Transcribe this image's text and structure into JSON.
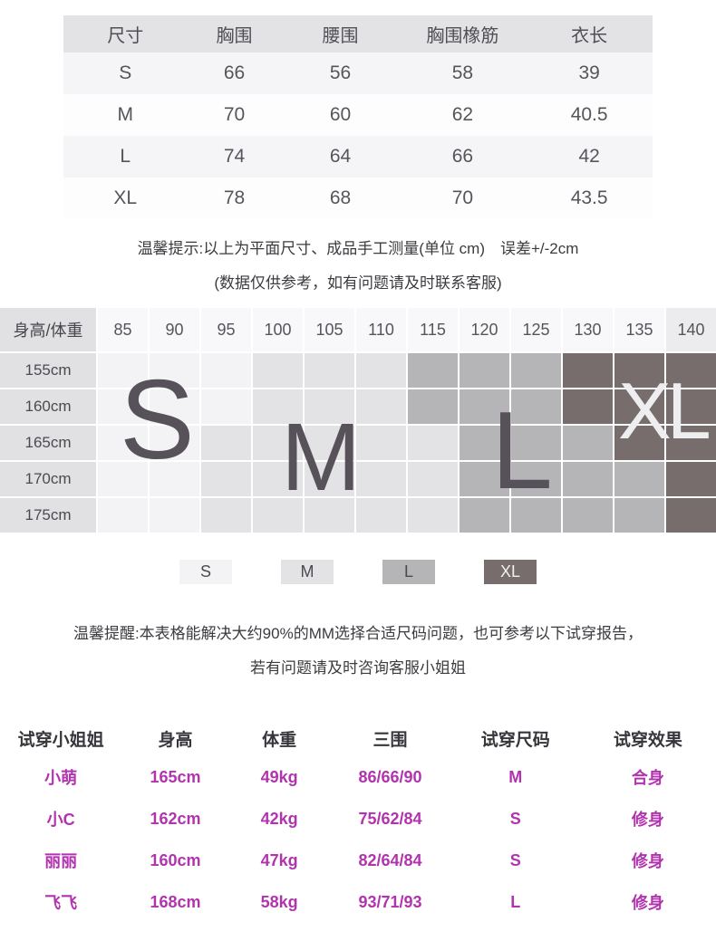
{
  "size_table": {
    "headers": [
      "尺寸",
      "胸围",
      "腰围",
      "胸围橡筋",
      "衣长"
    ],
    "rows": [
      [
        "S",
        "66",
        "56",
        "58",
        "39"
      ],
      [
        "M",
        "70",
        "60",
        "62",
        "40.5"
      ],
      [
        "L",
        "74",
        "64",
        "66",
        "42"
      ],
      [
        "XL",
        "78",
        "68",
        "70",
        "43.5"
      ]
    ]
  },
  "note1": {
    "line1": "温馨提示:以上为平面尺寸、成品手工测量(单位 cm)　误差+/-2cm",
    "line2": "(数据仅供参考，如有问题请及时联系客服)"
  },
  "height_weight_chart": {
    "type": "table",
    "corner_label": "身高/体重",
    "weights": [
      "85",
      "90",
      "95",
      "100",
      "105",
      "110",
      "115",
      "120",
      "125",
      "130",
      "135",
      "140"
    ],
    "heights": [
      "155cm",
      "160cm",
      "165cm",
      "170cm",
      "175cm"
    ],
    "zones": [
      [
        "S",
        "S",
        "S",
        "M",
        "M",
        "M",
        "L",
        "L",
        "L",
        "XL",
        "XL",
        "XL"
      ],
      [
        "S",
        "S",
        "S",
        "M",
        "M",
        "M",
        "L",
        "L",
        "L",
        "XL",
        "XL",
        "XL"
      ],
      [
        "S",
        "S",
        "M",
        "M",
        "M",
        "M",
        "M",
        "L",
        "L",
        "L",
        "XL",
        "XL"
      ],
      [
        "S",
        "S",
        "M",
        "M",
        "M",
        "M",
        "M",
        "L",
        "L",
        "L",
        "L",
        "XL"
      ],
      [
        "S",
        "S",
        "M",
        "M",
        "M",
        "M",
        "M",
        "L",
        "L",
        "L",
        "L",
        "XL"
      ]
    ],
    "big_labels": {
      "s": "S",
      "m": "M",
      "l": "L",
      "xl": "XL"
    },
    "zone_colors": {
      "S": "#f3f3f5",
      "M": "#e3e3e5",
      "L": "#b5b4b6",
      "XL": "#786d6d"
    }
  },
  "legend": {
    "items": [
      "S",
      "M",
      "L",
      "XL"
    ]
  },
  "note2": {
    "line1": "温馨提醒:本表格能解决大约90%的MM选择合适尺码问题，也可参考以下试穿报告，",
    "line2": "若有问题请及时咨询客服小姐姐"
  },
  "fit_table": {
    "headers": [
      "试穿小姐姐",
      "身高",
      "体重",
      "三围",
      "试穿尺码",
      "试穿效果"
    ],
    "rows": [
      [
        "小萌",
        "165cm",
        "49kg",
        "86/66/90",
        "M",
        "合身"
      ],
      [
        "小C",
        "162cm",
        "42kg",
        "75/62/84",
        "S",
        "修身"
      ],
      [
        "丽丽",
        "160cm",
        "47kg",
        "82/64/84",
        "S",
        "修身"
      ],
      [
        "飞飞",
        "168cm",
        "58kg",
        "93/71/93",
        "L",
        "修身"
      ]
    ]
  },
  "colors": {
    "header_gray": "#e3e3e5",
    "zebra_gray": "#f5f5f7",
    "accent_magenta": "#b233ae",
    "xl_dark": "#786d6d"
  }
}
